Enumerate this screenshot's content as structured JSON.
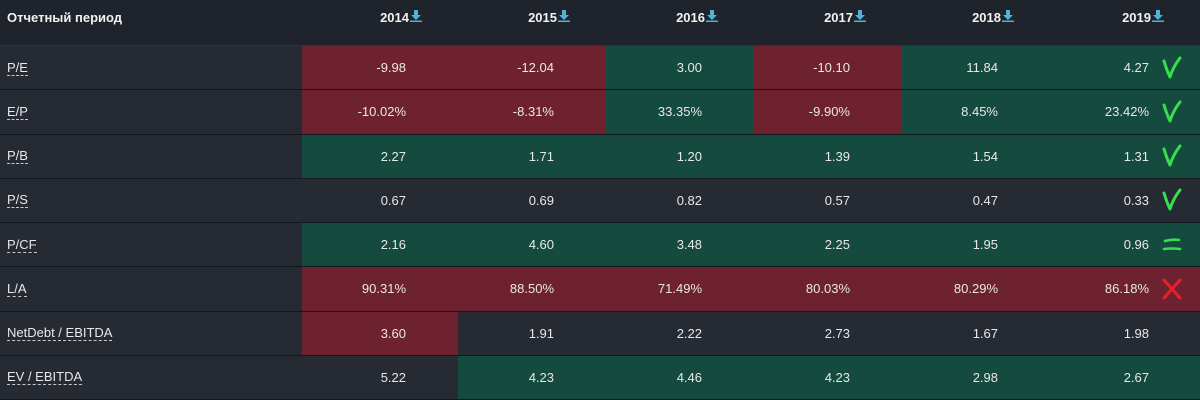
{
  "header": {
    "period_label": "Отчетный период",
    "years": [
      "2014",
      "2015",
      "2016",
      "2017",
      "2018",
      "2019"
    ]
  },
  "rows": [
    {
      "label": "P/E",
      "values": [
        "-9.98",
        "-12.04",
        "3.00",
        "-10.10",
        "11.84",
        "4.27"
      ],
      "status": [
        "red",
        "red",
        "green",
        "red",
        "green",
        "green"
      ],
      "mark": "check"
    },
    {
      "label": "E/P",
      "values": [
        "-10.02%",
        "-8.31%",
        "33.35%",
        "-9.90%",
        "8.45%",
        "23.42%"
      ],
      "status": [
        "red",
        "red",
        "green",
        "red",
        "green",
        "green"
      ],
      "mark": "check"
    },
    {
      "label": "P/B",
      "values": [
        "2.27",
        "1.71",
        "1.20",
        "1.39",
        "1.54",
        "1.31"
      ],
      "status": [
        "green",
        "green",
        "green",
        "green",
        "green",
        "green"
      ],
      "mark": "check"
    },
    {
      "label": "P/S",
      "values": [
        "0.67",
        "0.69",
        "0.82",
        "0.57",
        "0.47",
        "0.33"
      ],
      "status": [
        "neutral",
        "neutral",
        "neutral",
        "neutral",
        "neutral",
        "neutral"
      ],
      "mark": "check"
    },
    {
      "label": "P/CF",
      "values": [
        "2.16",
        "4.60",
        "3.48",
        "2.25",
        "1.95",
        "0.96"
      ],
      "status": [
        "green",
        "green",
        "green",
        "green",
        "green",
        "green"
      ],
      "mark": "equals"
    },
    {
      "label": "L/A",
      "values": [
        "90.31%",
        "88.50%",
        "71.49%",
        "80.03%",
        "80.29%",
        "86.18%"
      ],
      "status": [
        "red",
        "red",
        "red",
        "red",
        "red",
        "red"
      ],
      "mark": "cross"
    },
    {
      "label": "NetDebt / EBITDA",
      "values": [
        "3.60",
        "1.91",
        "2.22",
        "2.73",
        "1.67",
        "1.98"
      ],
      "status": [
        "red",
        "neutral",
        "neutral",
        "neutral",
        "neutral",
        "neutral"
      ],
      "mark": "none"
    },
    {
      "label": "EV / EBITDA",
      "values": [
        "5.22",
        "4.23",
        "4.46",
        "4.23",
        "2.98",
        "2.67"
      ],
      "status": [
        "neutral",
        "green",
        "green",
        "green",
        "green",
        "green"
      ],
      "mark": "none"
    }
  ],
  "colors": {
    "background": "#1f232b",
    "negative": "#6e222f",
    "positive": "#154a3f",
    "download_icon": "#4fb3d9",
    "check_mark": "#36e04a",
    "cross_mark": "#e8202a"
  },
  "icons": {
    "header_year": "download-icon",
    "check": "check-mark-icon",
    "equals": "equals-mark-icon",
    "cross": "cross-mark-icon"
  }
}
